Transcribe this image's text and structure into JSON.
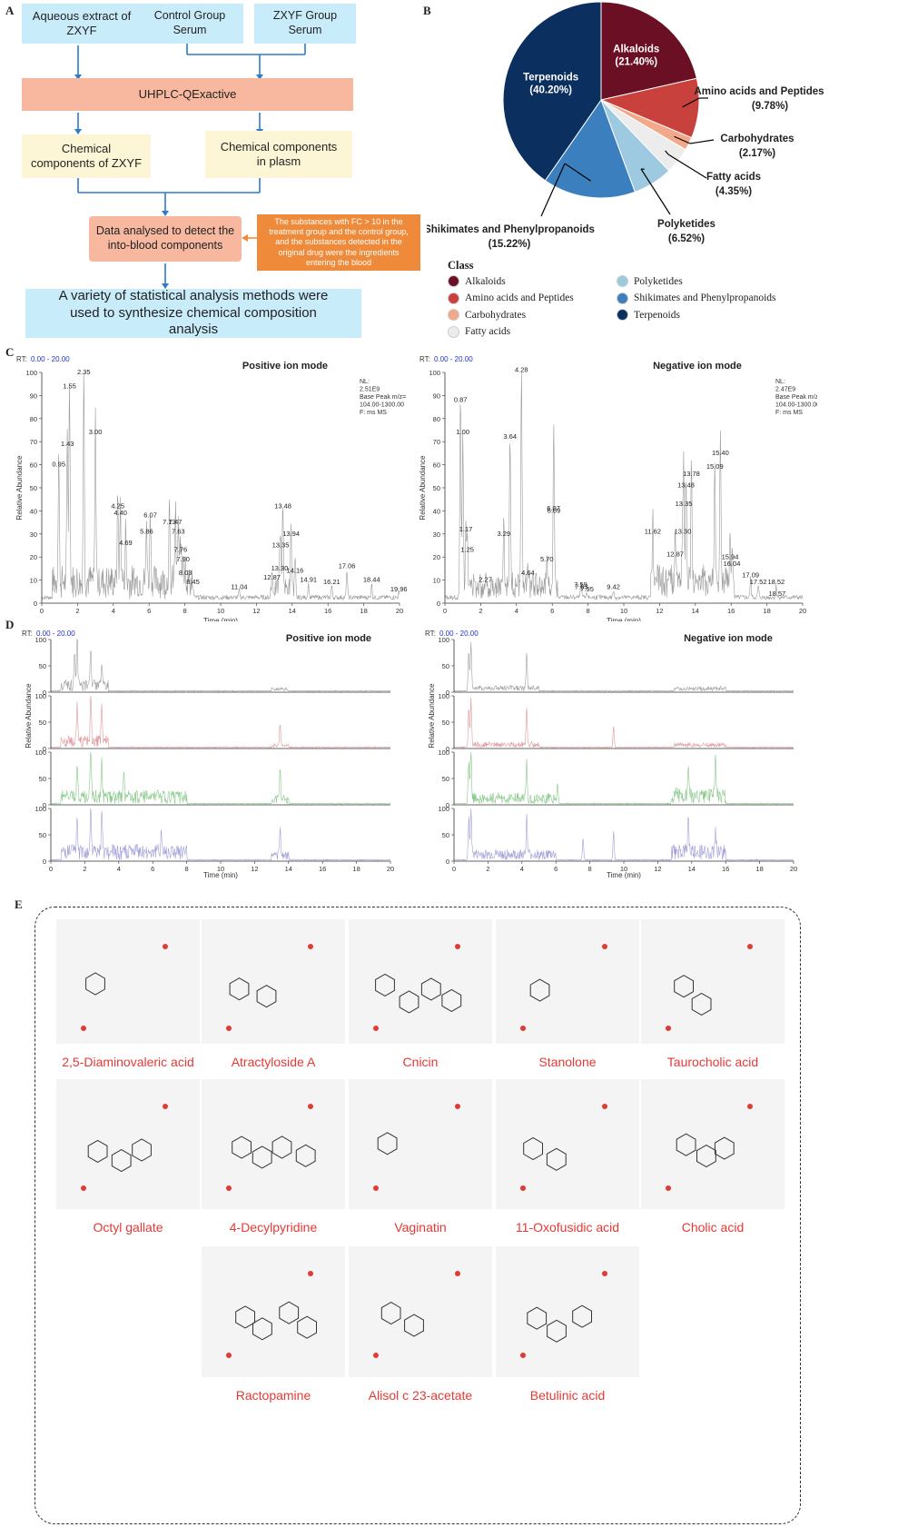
{
  "panels": {
    "a": "A",
    "b": "B",
    "c": "C",
    "d": "D",
    "e": "E"
  },
  "flowchart": {
    "box1": "Aqueous extract of ZXYF",
    "box2": "Control Group Serum",
    "box3": "ZXYF Group Serum",
    "box4": "UHPLC-QExactive",
    "box5": "Chemical components of ZXYF",
    "box6": "Chemical components in plasm",
    "box7": "Data analysed to detect the into-blood components",
    "note": "The substances with FC > 10 in the treatment group and the control group, and the substances detected in the original drug were the ingredients entering the blood",
    "box8": "A variety of statistical analysis methods were used to synthesize chemical composition analysis"
  },
  "pie": {
    "legend_title": "Class",
    "slices": [
      {
        "label": "Alkaloids",
        "pct": "21.40%",
        "value": 21.4,
        "color": "#6b0f24"
      },
      {
        "label": "Amino acids and Peptides",
        "pct": "9.78%",
        "value": 9.78,
        "color": "#c8413c"
      },
      {
        "label": "Carbohydrates",
        "pct": "2.17%",
        "value": 2.17,
        "color": "#f2a98a"
      },
      {
        "label": "Fatty acids",
        "pct": "4.35%",
        "value": 4.35,
        "color": "#ececec"
      },
      {
        "label": "Polyketides",
        "pct": "6.52%",
        "value": 6.52,
        "color": "#9ecae1"
      },
      {
        "label": "Shikimates and Phenylpropanoids",
        "pct": "15.22%",
        "value": 15.22,
        "color": "#3c7fbe"
      },
      {
        "label": "Terpenoids",
        "pct": "40.20%",
        "value": 40.2,
        "color": "#0b2f5e"
      }
    ]
  },
  "chart_data": [
    {
      "type": "pie",
      "title": "",
      "categories": [
        "Alkaloids",
        "Amino acids and Peptides",
        "Carbohydrates",
        "Fatty acids",
        "Polyketides",
        "Shikimates and Phenylpropanoids",
        "Terpenoids"
      ],
      "values": [
        21.4,
        9.78,
        2.17,
        4.35,
        6.52,
        15.22,
        40.2
      ]
    },
    {
      "type": "line",
      "title": "Positive ion mode",
      "xlabel": "Time (min)",
      "ylabel": "Relative Abundance",
      "xlim": [
        0,
        20
      ],
      "ylim": [
        0,
        100
      ],
      "x": [
        0.95,
        1.43,
        1.55,
        2.35,
        3.0,
        4.25,
        4.4,
        4.69,
        5.86,
        6.07,
        7.13,
        7.47,
        7.63,
        7.76,
        7.9,
        8.03,
        8.45,
        11.04,
        12.87,
        13.3,
        13.35,
        13.48,
        13.94,
        14.16,
        14.91,
        16.21,
        17.06,
        18.44,
        19.96
      ],
      "y": [
        58,
        67,
        92,
        98,
        72,
        40,
        37,
        24,
        29,
        36,
        33,
        33,
        29,
        21,
        17,
        11,
        7,
        5,
        9,
        13,
        23,
        40,
        28,
        12,
        8,
        7,
        14,
        8,
        4
      ]
    },
    {
      "type": "line",
      "title": "Negative ion mode",
      "xlabel": "Time (min)",
      "ylabel": "Relative Abundance",
      "xlim": [
        0,
        20
      ],
      "ylim": [
        0,
        100
      ],
      "x": [
        0.87,
        1.0,
        1.17,
        1.25,
        2.27,
        3.29,
        3.64,
        4.28,
        4.64,
        5.7,
        6.07,
        6.09,
        7.59,
        7.63,
        7.95,
        9.42,
        11.62,
        12.87,
        13.3,
        13.35,
        13.48,
        13.78,
        15.09,
        15.4,
        15.94,
        16.04,
        17.09,
        17.52,
        18.52,
        18.57
      ],
      "y": [
        86,
        72,
        30,
        21,
        8,
        28,
        70,
        99,
        11,
        17,
        39,
        38,
        6,
        5,
        4,
        5,
        29,
        19,
        29,
        41,
        49,
        54,
        57,
        63,
        18,
        15,
        10,
        7,
        7,
        2
      ]
    }
  ],
  "chrom_c": {
    "rt_label": "RT: 0.00 - 20.00",
    "pos_title": "Positive ion mode",
    "neg_title": "Negative ion mode",
    "pos_nl": "NL:\n2.51E9\nBase Peak m/z=\n104.00-1300.00\nF: ms   MS",
    "neg_nl": "NL:\n2.47E9\nBase Peak m/z=\n104.00-1300.00\nF: ms   MS",
    "ylabel": "Relative Abundance",
    "xlabel": "Time (min)"
  },
  "chrom_d": {
    "rt_label": "RT: 0.00 - 20.00",
    "pos_title": "Positive ion mode",
    "neg_title": "Negative ion mode",
    "ylabel": "Relative Abundance",
    "xlabel": "Time (min)"
  },
  "molecules": [
    "2,5-Diaminovaleric acid",
    "Atractyloside A",
    "Cnicin",
    "Stanolone",
    "Taurocholic acid",
    "Octyl gallate",
    "4-Decylpyridine",
    "Vaginatin",
    "11-Oxofusidic acid",
    "Cholic acid",
    "Ractopamine",
    "Alisol c 23-acetate",
    "Betulinic acid"
  ]
}
